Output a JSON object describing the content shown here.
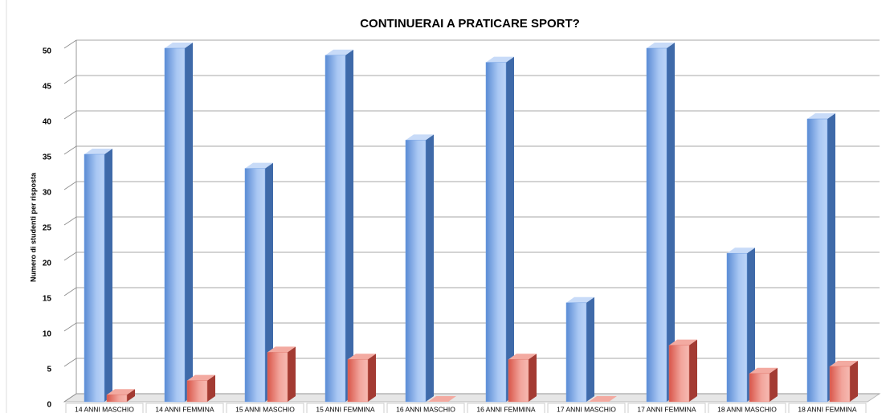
{
  "chart_data": {
    "type": "bar3d",
    "title": "CONTINUERAI A PRATICARE SPORT?",
    "y_label": "Numero di studenti per risposta",
    "categories": [
      "14 ANNI MASCHIO",
      "14 ANNI FEMMINA",
      "15 ANNI MASCHIO",
      "15 ANNI FEMMINA",
      "16 ANNI MASCHIO",
      "16 ANNI FEMMINA",
      "17 ANNI MASCHIO",
      "17 ANNI FEMMINA",
      "18 ANNI MASCHIO",
      "18 ANNI FEMMINA"
    ],
    "series": [
      {
        "color": "#6f9ee3",
        "values": [
          35,
          50,
          33,
          49,
          37,
          48,
          14,
          50,
          21,
          40
        ]
      },
      {
        "color": "#e0766b",
        "values": [
          1,
          3,
          7,
          6,
          0,
          6,
          0,
          8,
          4,
          5
        ]
      }
    ],
    "ylim": [
      0,
      50
    ],
    "yticks": [
      0,
      5,
      10,
      15,
      20,
      25,
      30,
      35,
      40,
      45,
      50
    ],
    "grid": true
  }
}
